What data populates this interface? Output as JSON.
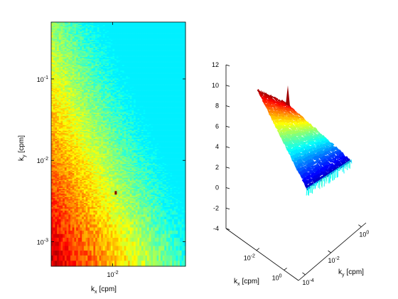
{
  "chart_data": [
    {
      "type": "heatmap",
      "xlabel": "k",
      "xlabel_sub": "x",
      "xlabel_unit": "[cpm]",
      "ylabel": "k",
      "ylabel_sub": "y",
      "ylabel_unit": "[cpm]",
      "xscale": "log",
      "yscale": "log",
      "xlim": [
        0.0022,
        0.06
      ],
      "ylim": [
        0.0005,
        0.5
      ],
      "x_ticks": [
        {
          "value": 0.01,
          "base": "10",
          "exp": "-2"
        }
      ],
      "y_ticks": [
        {
          "value": 0.001,
          "base": "10",
          "exp": "-3"
        },
        {
          "value": 0.01,
          "base": "10",
          "exp": "-2"
        },
        {
          "value": 0.1,
          "base": "10",
          "exp": "-1"
        }
      ],
      "colormap": "jet",
      "z_range": [
        0,
        12
      ],
      "description_values": {
        "max_region": "low k_x and low k_y (dark red)",
        "min_region": "high k_x and high k_y (cyan)"
      }
    },
    {
      "type": "surface3d",
      "xlabel": "k",
      "xlabel_sub": "x",
      "xlabel_unit": "[cpm]",
      "ylabel": "k",
      "ylabel_sub": "y",
      "ylabel_unit": "[cpm]",
      "zlim": [
        -4,
        12
      ],
      "z_ticks": [
        -4,
        -2,
        0,
        2,
        4,
        6,
        8,
        10,
        12
      ],
      "x_ticks": [
        {
          "base": "10",
          "exp": "-2"
        },
        {
          "base": "10",
          "exp": "0"
        }
      ],
      "y_ticks": [
        {
          "base": "10",
          "exp": "-4"
        },
        {
          "base": "10",
          "exp": "-2"
        },
        {
          "base": "10",
          "exp": "0"
        }
      ],
      "colormap": "jet",
      "surface_z_range": [
        -1,
        11
      ]
    }
  ]
}
